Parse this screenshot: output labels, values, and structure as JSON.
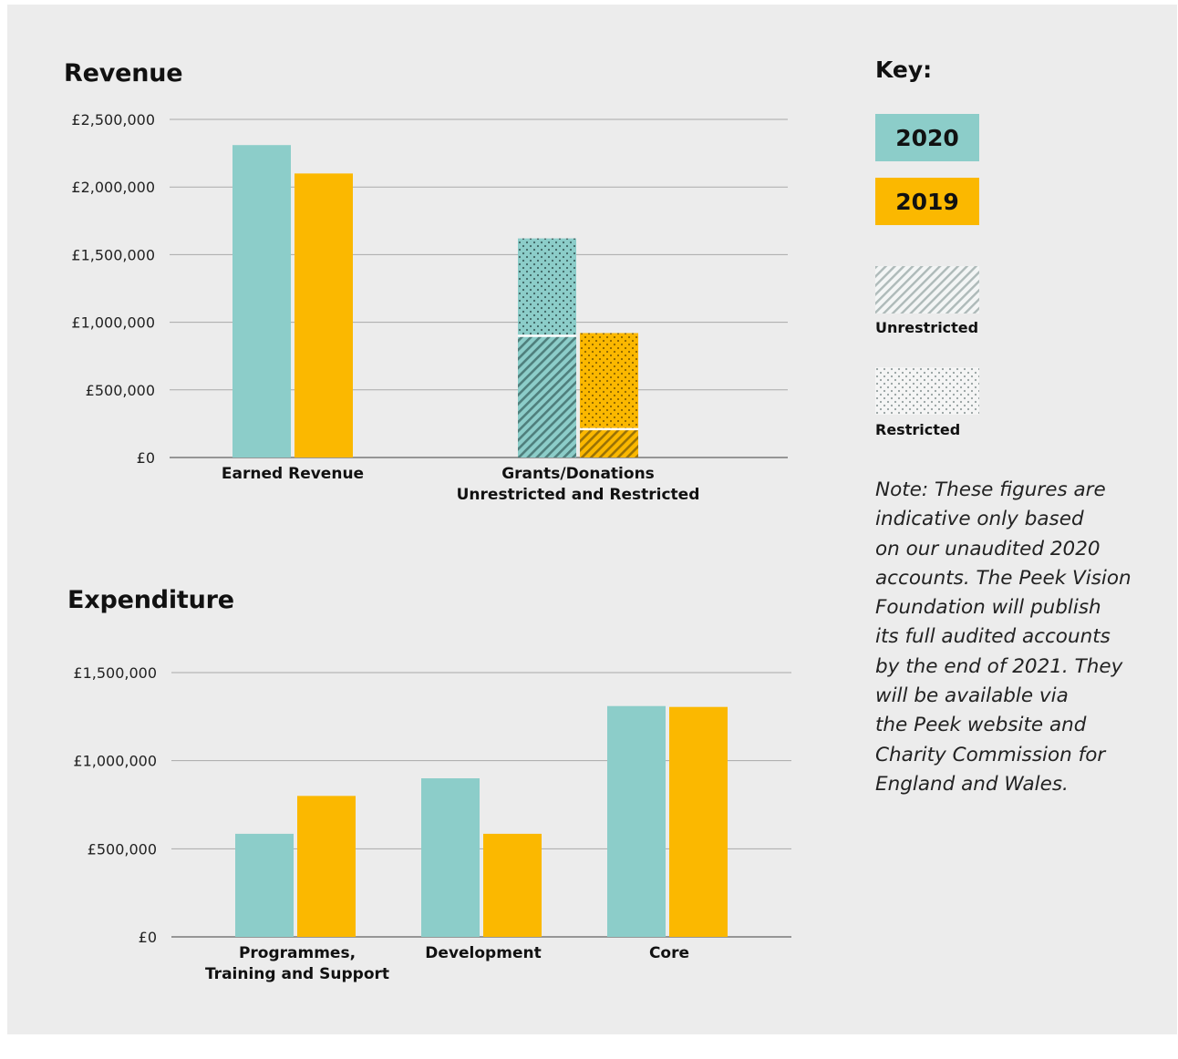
{
  "colors": {
    "y2020": "#8ccdc9",
    "y2019": "#fbb800"
  },
  "revenue": {
    "title": "Revenue",
    "chart_data": {
      "type": "bar",
      "title": "Revenue",
      "categories": [
        [
          "Earned Revenue"
        ],
        [
          "Grants/Donations",
          "Unrestricted and Restricted"
        ]
      ],
      "ylim": [
        0,
        2500000
      ],
      "yticks": [
        0,
        500000,
        1000000,
        1500000,
        2000000,
        2500000
      ],
      "ytick_labels": [
        "£0",
        "£500,000",
        "£1,000,000",
        "£1,500,000",
        "£2,000,000",
        "£2,500,000"
      ],
      "grid": true,
      "series": [
        {
          "name": "2020",
          "values": [
            2310000,
            1620000
          ],
          "stack": [
            null,
            {
              "Unrestricted": 900000,
              "Restricted": 720000
            }
          ]
        },
        {
          "name": "2019",
          "values": [
            2100000,
            920000
          ],
          "stack": [
            null,
            {
              "Unrestricted": 210000,
              "Restricted": 710000
            }
          ]
        }
      ]
    }
  },
  "expenditure": {
    "title": "Expenditure",
    "chart_data": {
      "type": "bar",
      "title": "Expenditure",
      "categories": [
        [
          "Programmes,",
          "Training and Support"
        ],
        [
          "Development"
        ],
        [
          "Core"
        ]
      ],
      "ylim": [
        0,
        1500000
      ],
      "yticks": [
        0,
        500000,
        1000000,
        1500000
      ],
      "ytick_labels": [
        "£0",
        "£500,000",
        "£1,000,000",
        "£1,500,000"
      ],
      "grid": true,
      "series": [
        {
          "name": "2020",
          "values": [
            585000,
            900000,
            1310000
          ]
        },
        {
          "name": "2019",
          "values": [
            800000,
            585000,
            1305000
          ]
        }
      ]
    }
  },
  "key": {
    "title": "Key:",
    "year_2020": "2020",
    "year_2019": "2019",
    "unrestricted": "Unrestricted",
    "restricted": "Restricted"
  },
  "note": "Note: These figures are\nindicative only based\non our unaudited 2020\naccounts. The Peek Vision\nFoundation will publish\nits full audited accounts\nby the end of 2021. They\nwill be available via\nthe Peek website and\nCharity Commission for\nEngland and Wales."
}
